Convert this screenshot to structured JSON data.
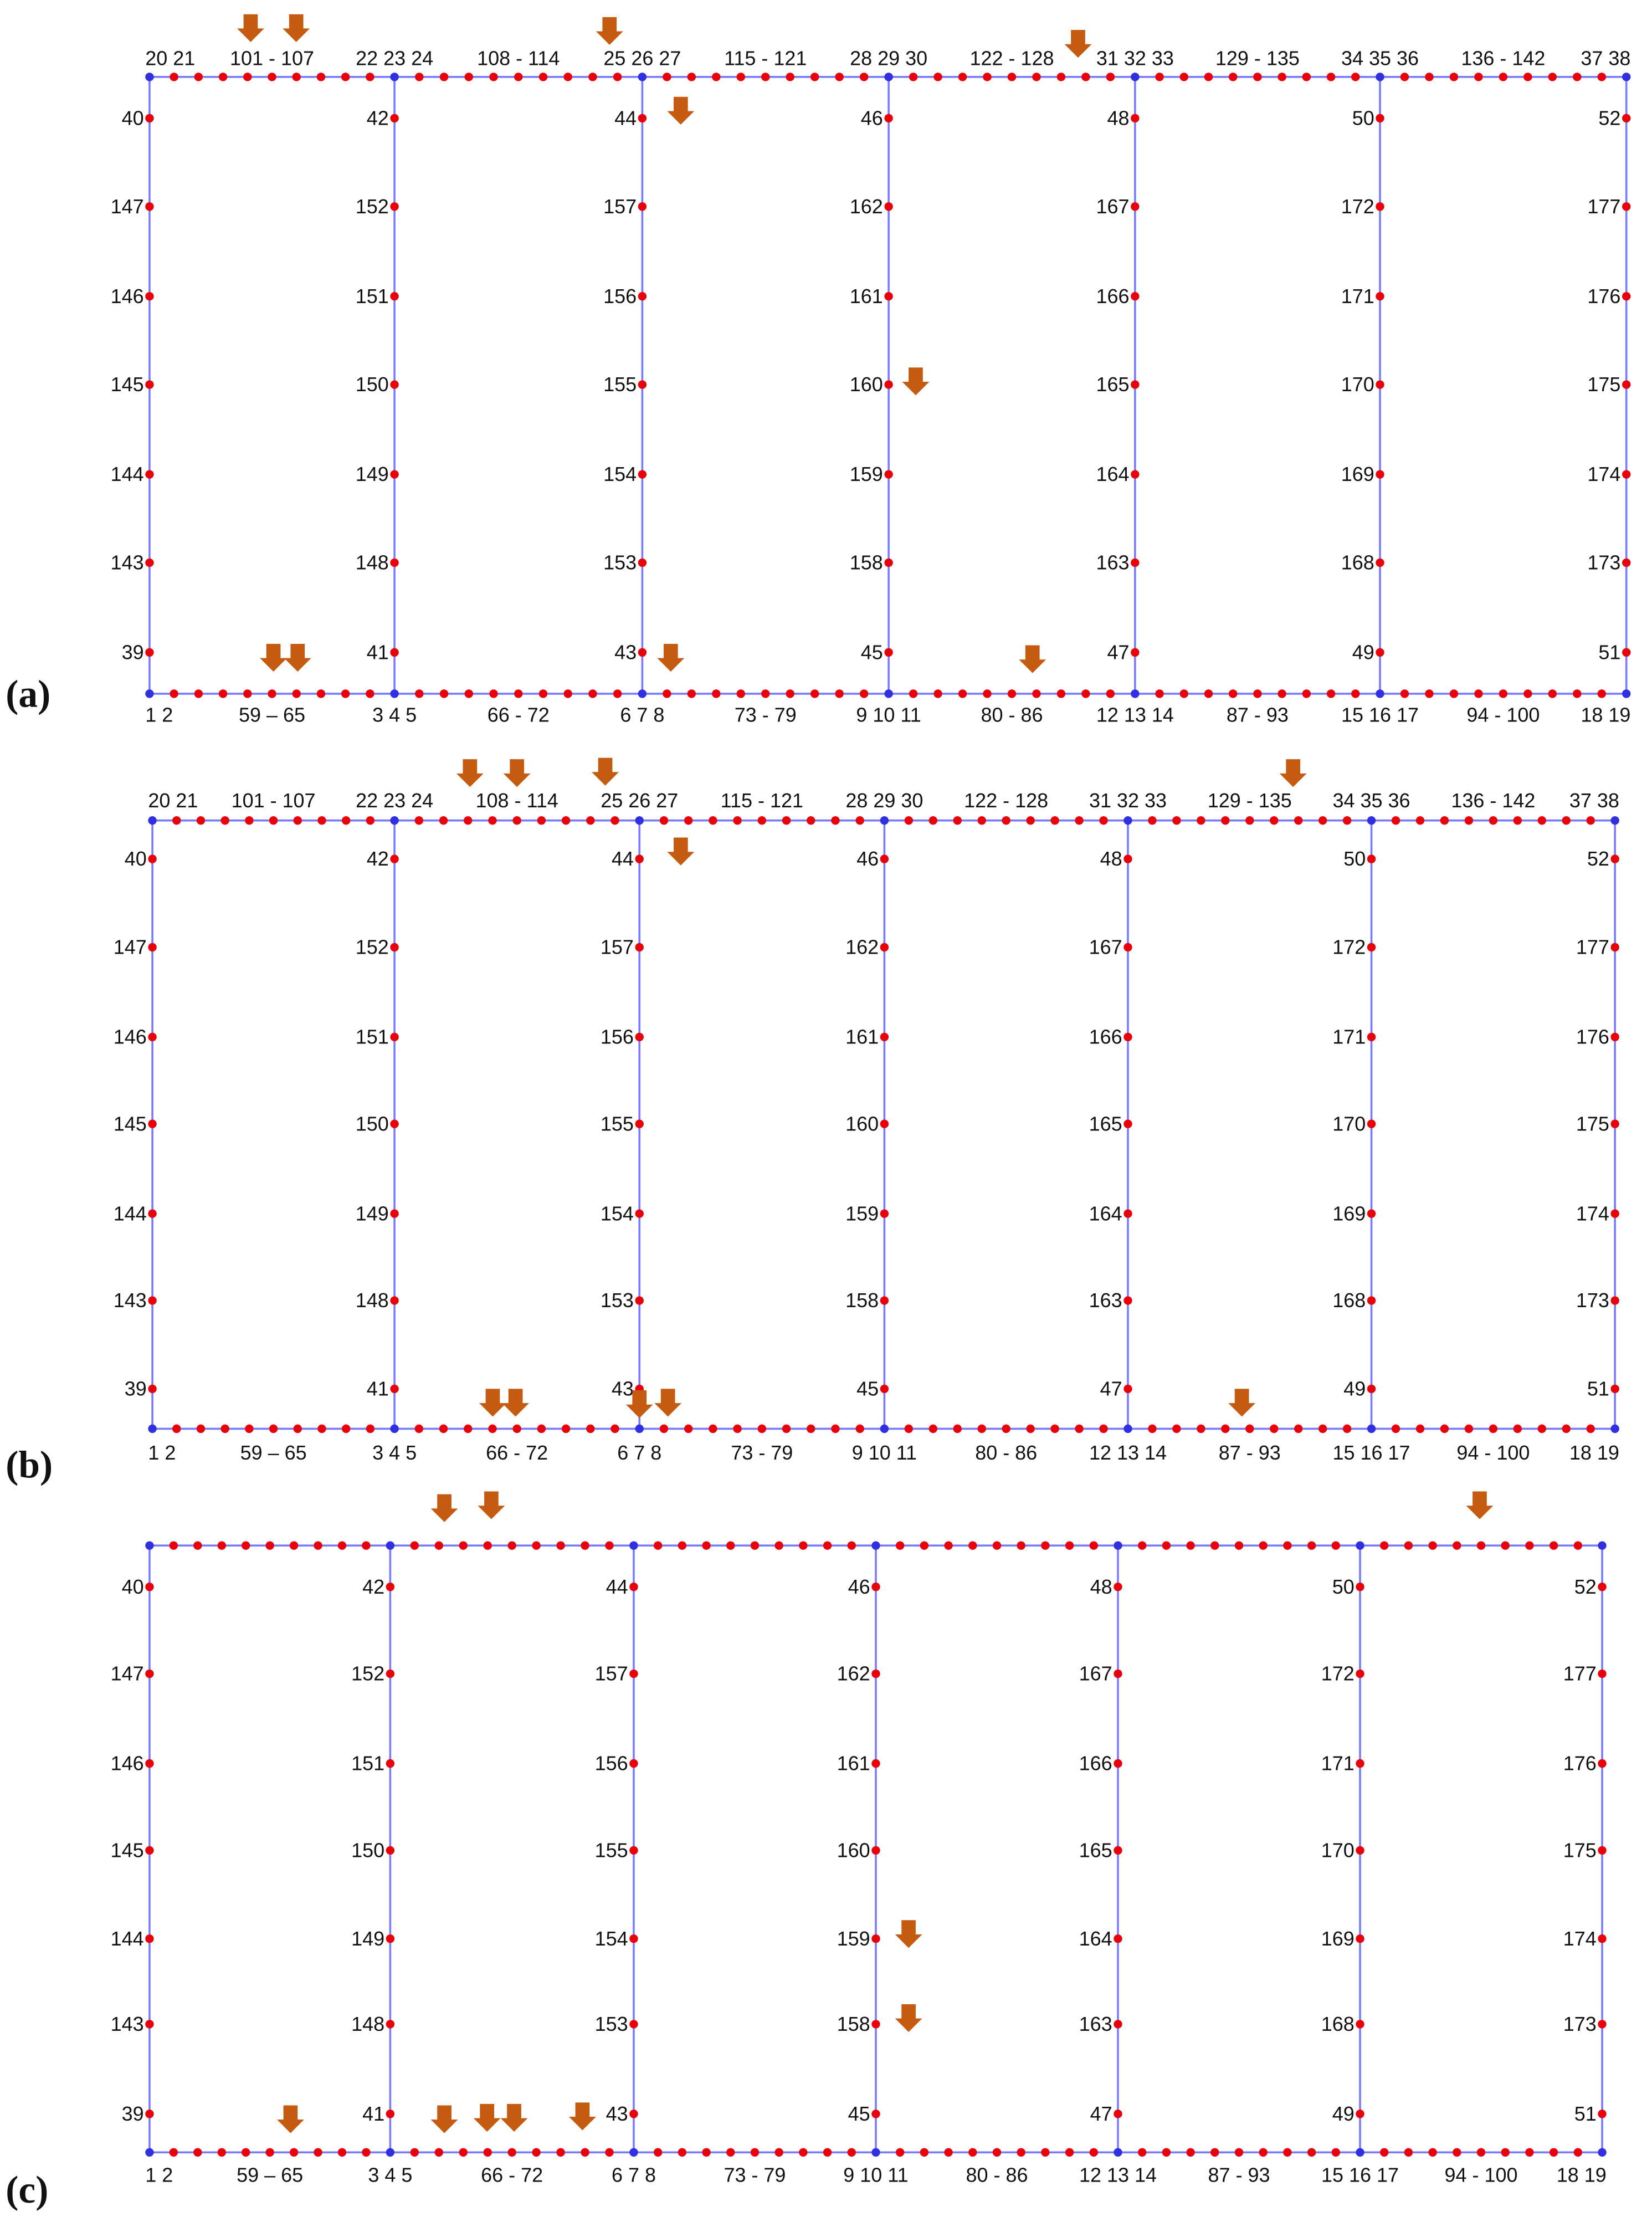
{
  "panels": [
    {
      "label": "(a)",
      "top_labels": [
        "20 21",
        "101 - 107",
        "22 23 24",
        "108 - 114",
        "25 26 27",
        "115 - 121",
        "28 29 30",
        "122 - 128",
        "31 32 33",
        "129 - 135",
        "34 35 36",
        "136 - 142",
        "37 38"
      ],
      "bottom_labels": [
        "1 2",
        "59 – 65",
        "3 4 5",
        "66 - 72",
        "6 7 8",
        "73 - 79",
        "9 10 11",
        "80 - 86",
        "12 13 14",
        "87 - 93",
        "15 16 17",
        "94 - 100",
        "18 19"
      ],
      "columns": [
        [
          "40",
          "147",
          "146",
          "145",
          "144",
          "143",
          "39"
        ],
        [
          "42",
          "152",
          "151",
          "150",
          "149",
          "148",
          "41"
        ],
        [
          "44",
          "157",
          "156",
          "155",
          "154",
          "153",
          "43"
        ],
        [
          "46",
          "162",
          "161",
          "160",
          "159",
          "158",
          "45"
        ],
        [
          "48",
          "167",
          "166",
          "165",
          "164",
          "163",
          "47"
        ],
        [
          "50",
          "172",
          "171",
          "170",
          "169",
          "168",
          "49"
        ],
        [
          "52",
          "177",
          "176",
          "175",
          "174",
          "173",
          "51"
        ]
      ]
    },
    {
      "label": "(b)",
      "top_labels": [
        "20 21",
        "101 - 107",
        "22 23 24",
        "108 - 114",
        "25 26 27",
        "115 - 121",
        "28 29 30",
        "122 - 128",
        "31 32 33",
        "129 - 135",
        "34 35 36",
        "136 - 142",
        "37 38"
      ],
      "bottom_labels": [
        "1 2",
        "59 – 65",
        "3 4 5",
        "66 - 72",
        "6 7 8",
        "73 - 79",
        "9 10 11",
        "80 - 86",
        "12 13 14",
        "87 - 93",
        "15 16 17",
        "94 - 100",
        "18 19"
      ],
      "columns": [
        [
          "40",
          "147",
          "146",
          "145",
          "144",
          "143",
          "39"
        ],
        [
          "42",
          "152",
          "151",
          "150",
          "149",
          "148",
          "41"
        ],
        [
          "44",
          "157",
          "156",
          "155",
          "154",
          "153",
          "43"
        ],
        [
          "46",
          "162",
          "161",
          "160",
          "159",
          "158",
          "45"
        ],
        [
          "48",
          "167",
          "166",
          "165",
          "164",
          "163",
          "47"
        ],
        [
          "50",
          "172",
          "171",
          "170",
          "169",
          "168",
          "49"
        ],
        [
          "52",
          "177",
          "176",
          "175",
          "174",
          "173",
          "51"
        ]
      ]
    },
    {
      "label": "(c)",
      "bottom_labels": [
        "1 2",
        "59 – 65",
        "3 4 5",
        "66 - 72",
        "6 7 8",
        "73 - 79",
        "9 10 11",
        "80 - 86",
        "12 13 14",
        "87 - 93",
        "15 16 17",
        "94 - 100",
        "18 19"
      ],
      "columns": [
        [
          "40",
          "147",
          "146",
          "145",
          "144",
          "143",
          "39"
        ],
        [
          "42",
          "152",
          "151",
          "150",
          "149",
          "148",
          "41"
        ],
        [
          "44",
          "157",
          "156",
          "155",
          "154",
          "153",
          "43"
        ],
        [
          "46",
          "162",
          "161",
          "160",
          "159",
          "158",
          "45"
        ],
        [
          "48",
          "167",
          "166",
          "165",
          "164",
          "163",
          "47"
        ],
        [
          "50",
          "172",
          "171",
          "170",
          "169",
          "168",
          "49"
        ],
        [
          "52",
          "177",
          "176",
          "175",
          "174",
          "173",
          "51"
        ]
      ]
    }
  ]
}
